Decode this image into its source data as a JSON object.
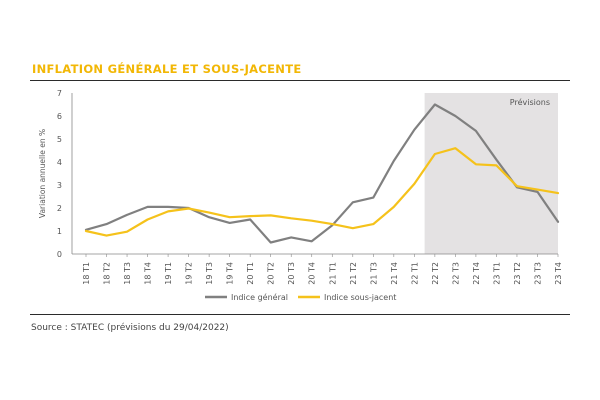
{
  "header": {
    "title": "INFLATION GÉNÉRALE ET SOUS-JACENTE"
  },
  "footer": {
    "source": "Source : STATEC (prévisions du 29/04/2022)"
  },
  "chart_data": {
    "type": "line",
    "title": "INFLATION GÉNÉRALE ET SOUS-JACENTE",
    "ylabel": "Variation annuelle en %",
    "xlabel": "",
    "ylim": [
      0,
      7
    ],
    "yticks": [
      0,
      1,
      2,
      3,
      4,
      5,
      6,
      7
    ],
    "categories": [
      "18 T1",
      "18 T2",
      "18 T3",
      "18 T4",
      "19 T1",
      "19 T2",
      "19 T3",
      "19 T4",
      "20 T1",
      "20 T2",
      "20 T3",
      "20 T4",
      "21 T1",
      "21 T2",
      "21 T3",
      "21 T4",
      "22 T1",
      "22 T2",
      "22 T3",
      "22 T4",
      "23 T1",
      "23 T2",
      "23 T3",
      "23 T4"
    ],
    "forecast": {
      "label": "Prévisions",
      "start_category": "22 T2",
      "end_category": "23 T4",
      "color": "#e4e2e3"
    },
    "series": [
      {
        "name": "Indice général",
        "color": "#808080",
        "values": [
          1.05,
          1.3,
          1.7,
          2.05,
          2.05,
          2.0,
          1.6,
          1.35,
          1.5,
          0.5,
          0.72,
          0.55,
          1.25,
          2.25,
          2.45,
          4.05,
          5.4,
          6.5,
          6.0,
          5.35,
          4.1,
          2.9,
          2.7,
          1.4
        ]
      },
      {
        "name": "Indice sous-jacent",
        "color": "#f5c21b",
        "values": [
          1.0,
          0.8,
          0.97,
          1.5,
          1.85,
          1.98,
          1.8,
          1.6,
          1.65,
          1.68,
          1.55,
          1.45,
          1.3,
          1.12,
          1.3,
          2.05,
          3.05,
          4.35,
          4.6,
          3.9,
          3.85,
          2.95,
          2.8,
          2.65
        ]
      }
    ],
    "legend": "bottom-center",
    "grid": false
  }
}
